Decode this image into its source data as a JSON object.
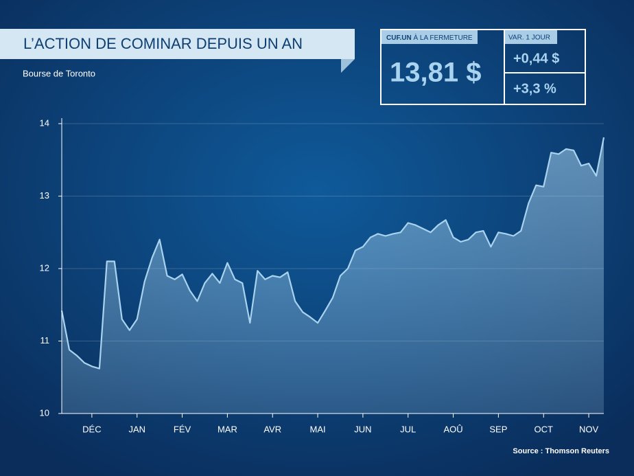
{
  "chart_data": {
    "type": "line",
    "title": "L’ACTION DE COMINAR DEPUIS UN AN",
    "subtitle": "Bourse de Toronto",
    "source": "Source : Thomson Reuters",
    "categories": [
      null,
      null,
      null,
      null,
      "DÉC",
      null,
      null,
      null,
      null,
      null,
      "JAN",
      null,
      null,
      null,
      null,
      null,
      "FÉV",
      null,
      null,
      null,
      null,
      null,
      "MAR",
      null,
      null,
      null,
      null,
      null,
      "AVR",
      null,
      null,
      null,
      null,
      null,
      "MAI",
      null,
      null,
      null,
      null,
      null,
      "JUN",
      null,
      null,
      null,
      null,
      null,
      "JUL",
      null,
      null,
      null,
      null,
      null,
      "AOÛ",
      null,
      null,
      null,
      null,
      null,
      "SEP",
      null,
      null,
      null,
      null,
      null,
      "OCT",
      null,
      null,
      null,
      null,
      null,
      "NOV",
      null,
      null
    ],
    "values": [
      11.42,
      10.88,
      10.8,
      10.7,
      10.65,
      10.62,
      12.1,
      12.1,
      11.3,
      11.15,
      11.3,
      11.82,
      12.15,
      12.4,
      11.9,
      11.85,
      11.92,
      11.7,
      11.55,
      11.8,
      11.93,
      11.8,
      12.08,
      11.85,
      11.8,
      11.25,
      11.97,
      11.85,
      11.9,
      11.88,
      11.95,
      11.55,
      11.4,
      11.33,
      11.25,
      11.42,
      11.6,
      11.9,
      12.0,
      12.25,
      12.3,
      12.43,
      12.48,
      12.45,
      12.48,
      12.5,
      12.63,
      12.6,
      12.55,
      12.5,
      12.6,
      12.67,
      12.43,
      12.37,
      12.4,
      12.5,
      12.52,
      12.3,
      12.5,
      12.48,
      12.45,
      12.52,
      12.9,
      13.15,
      13.13,
      13.6,
      13.58,
      13.65,
      13.63,
      13.42,
      13.45,
      13.28,
      13.81
    ],
    "color": "#a9d3ee",
    "ylim": [
      10,
      14
    ],
    "yticks": [
      10,
      11,
      12,
      13,
      14
    ],
    "grid": true
  },
  "quote": {
    "symbol": "CUF.UN",
    "label": "À LA FERMETURE",
    "price": "13,81 $",
    "change_label": "VAR. 1 JOUR",
    "change": "+0,44 $",
    "change_pct": "+3,3 %"
  }
}
